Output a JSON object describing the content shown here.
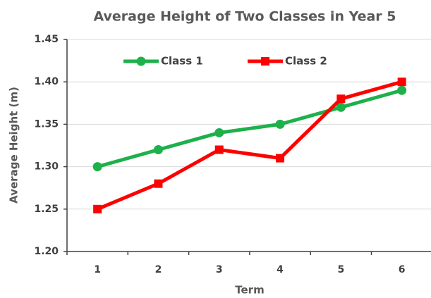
{
  "chart_data": {
    "type": "line",
    "title": "Average Height of Two Classes in Year 5",
    "x_label": "Term",
    "y_label": "Average Height (m)",
    "categories": [
      "1",
      "2",
      "3",
      "4",
      "5",
      "6"
    ],
    "series": [
      {
        "name": "Class 1",
        "color": "#1db04b",
        "marker": "circle",
        "values": [
          1.3,
          1.32,
          1.34,
          1.35,
          1.37,
          1.39
        ]
      },
      {
        "name": "Class 2",
        "color": "#ff0000",
        "marker": "square",
        "values": [
          1.25,
          1.28,
          1.32,
          1.31,
          1.38,
          1.4
        ]
      }
    ],
    "ylim": [
      1.2,
      1.45
    ],
    "yticks": [
      {
        "value": 1.2,
        "label": "1.20"
      },
      1.25,
      {
        "value": 1.3,
        "label": "1.30"
      },
      1.35,
      {
        "value": 1.4,
        "label": "1.40"
      },
      1.45
    ],
    "grid": true,
    "legend": "top"
  }
}
